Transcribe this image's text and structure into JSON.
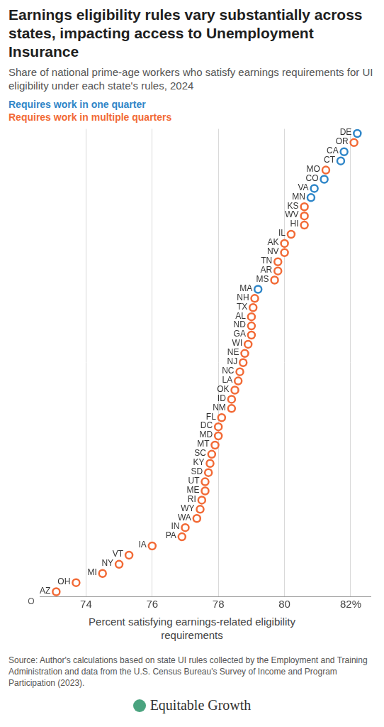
{
  "chart_data": {
    "type": "scatter",
    "title": "Earnings eligibility rules vary substantially across states, impacting access to Unemployment Insurance",
    "subtitle": "Share of national prime-age workers who satisfy earnings requirements for UI eligibility under each state's rules, 2024",
    "x_label": "Percent satisfying earnings-related eligibility requirements",
    "source": "Source: Author's calculations based on state UI rules collected by the Employment and Training Administration and data from the U.S. Census Bureau's Survey of Income and Program Participation (2023).",
    "logo": "Equitable Growth",
    "categories": [
      "DE",
      "OR",
      "CA",
      "CT",
      "MO",
      "CO",
      "VA",
      "MN",
      "KS",
      "WV",
      "HI",
      "IL",
      "AK",
      "NV",
      "TN",
      "AR",
      "MS",
      "MA",
      "NH",
      "TX",
      "AL",
      "ND",
      "GA",
      "WI",
      "NE",
      "NJ",
      "NC",
      "LA",
      "OK",
      "ID",
      "NM",
      "FL",
      "DC",
      "MD",
      "MT",
      "SC",
      "KY",
      "SD",
      "UT",
      "ME",
      "RI",
      "WY",
      "WA",
      "IN",
      "PA",
      "IA",
      "VT",
      "NY",
      "MI",
      "OH",
      "AZ"
    ],
    "series": [
      {
        "name": "Requires work in one quarter",
        "color": "#2f86c8",
        "values": [
          82.2,
          null,
          81.8,
          81.7,
          null,
          81.2,
          80.9,
          80.8,
          null,
          null,
          null,
          null,
          null,
          null,
          null,
          null,
          null,
          79.2,
          null,
          null,
          null,
          null,
          null,
          null,
          null,
          null,
          null,
          null,
          null,
          null,
          null,
          null,
          null,
          null,
          null,
          null,
          null,
          null,
          null,
          null,
          null,
          null,
          null,
          null,
          null,
          null,
          null,
          null,
          null,
          null,
          null
        ]
      },
      {
        "name": "Requires work in multiple quarters",
        "color": "#f26a36",
        "values": [
          null,
          82.1,
          null,
          null,
          81.25,
          null,
          null,
          null,
          80.6,
          80.6,
          80.6,
          80.2,
          80.0,
          80.0,
          79.8,
          79.8,
          79.7,
          null,
          79.1,
          79.05,
          79.0,
          79.0,
          79.0,
          78.9,
          78.8,
          78.75,
          78.65,
          78.6,
          78.5,
          78.4,
          78.4,
          78.1,
          78.0,
          78.0,
          77.9,
          77.8,
          77.75,
          77.7,
          77.6,
          77.6,
          77.5,
          77.45,
          77.35,
          77.0,
          76.9,
          76.0,
          75.3,
          75.0,
          74.5,
          73.7,
          73.1
        ]
      }
    ],
    "xlim": [
      72.6,
      82.6
    ],
    "xticks": [
      74,
      76,
      78,
      80,
      {
        "value": 82,
        "label": "82%"
      }
    ],
    "grid": true,
    "legend": "top-left",
    "tick_labels": "x",
    "marker": "circle",
    "annotations": [
      "O"
    ]
  }
}
